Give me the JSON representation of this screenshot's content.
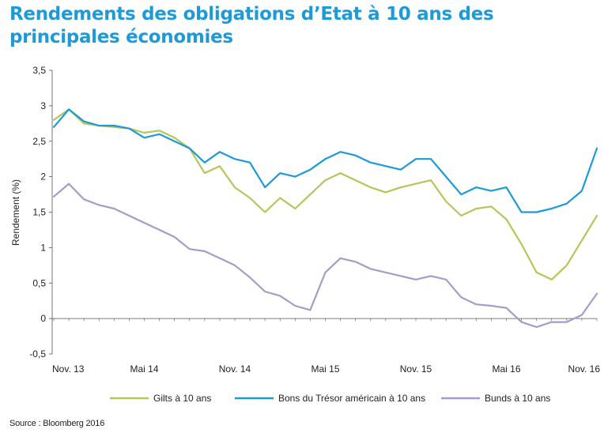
{
  "title_line1": "Rendements des obligations d’Etat à 10 ans des",
  "title_line2": "principales économies",
  "source": "Source : Bloomberg 2016",
  "chart_data": {
    "type": "line",
    "title": "Rendements des obligations d’Etat à 10 ans des principales économies",
    "xlabel": "",
    "ylabel": "Rendement (%)",
    "ylim": [
      -0.5,
      3.5
    ],
    "yticks": [
      -0.5,
      0,
      0.5,
      1,
      1.5,
      2,
      2.5,
      3,
      3.5
    ],
    "ytick_labels": [
      "-0,5",
      "0",
      "0,5",
      "1",
      "1,5",
      "2",
      "2,5",
      "3",
      "3,5"
    ],
    "x_axis_labels": [
      "Nov. 13",
      "Mai 14",
      "Nov. 14",
      "Mai 15",
      "Nov. 15",
      "Mai 16",
      "Nov. 16"
    ],
    "x": [
      "2013-11",
      "2013-12",
      "2014-01",
      "2014-02",
      "2014-03",
      "2014-04",
      "2014-05",
      "2014-06",
      "2014-07",
      "2014-08",
      "2014-09",
      "2014-10",
      "2014-11",
      "2014-12",
      "2015-01",
      "2015-02",
      "2015-03",
      "2015-04",
      "2015-05",
      "2015-06",
      "2015-07",
      "2015-08",
      "2015-09",
      "2015-10",
      "2015-11",
      "2015-12",
      "2016-01",
      "2016-02",
      "2016-03",
      "2016-04",
      "2016-05",
      "2016-06",
      "2016-07",
      "2016-08",
      "2016-09",
      "2016-10",
      "2016-11"
    ],
    "grid": false,
    "legend_position": "bottom",
    "series": [
      {
        "name": "Gilts à 10 ans",
        "color": "#b5c65a",
        "values": [
          2.8,
          2.95,
          2.75,
          2.72,
          2.7,
          2.68,
          2.62,
          2.65,
          2.55,
          2.4,
          2.05,
          2.15,
          1.85,
          1.7,
          1.5,
          1.7,
          1.55,
          1.75,
          1.95,
          2.05,
          1.95,
          1.85,
          1.78,
          1.85,
          1.9,
          1.95,
          1.65,
          1.45,
          1.55,
          1.58,
          1.4,
          1.05,
          0.65,
          0.55,
          0.75,
          1.1,
          1.45
        ]
      },
      {
        "name": "Bons du Trésor américain à 10 ans",
        "color": "#1e9ad6",
        "values": [
          2.7,
          2.95,
          2.78,
          2.72,
          2.72,
          2.68,
          2.55,
          2.6,
          2.5,
          2.4,
          2.2,
          2.35,
          2.25,
          2.2,
          1.85,
          2.05,
          2.0,
          2.1,
          2.25,
          2.35,
          2.3,
          2.2,
          2.15,
          2.1,
          2.25,
          2.25,
          2.0,
          1.75,
          1.85,
          1.8,
          1.85,
          1.5,
          1.5,
          1.55,
          1.62,
          1.8,
          2.4
        ]
      },
      {
        "name": "Bunds à 10 ans",
        "color": "#a89acb",
        "values": [
          1.72,
          1.9,
          1.68,
          1.6,
          1.55,
          1.45,
          1.35,
          1.25,
          1.15,
          0.98,
          0.95,
          0.85,
          0.75,
          0.58,
          0.38,
          0.32,
          0.18,
          0.12,
          0.65,
          0.85,
          0.8,
          0.7,
          0.65,
          0.6,
          0.55,
          0.6,
          0.55,
          0.3,
          0.2,
          0.18,
          0.15,
          -0.05,
          -0.12,
          -0.05,
          -0.05,
          0.05,
          0.35
        ]
      }
    ]
  }
}
